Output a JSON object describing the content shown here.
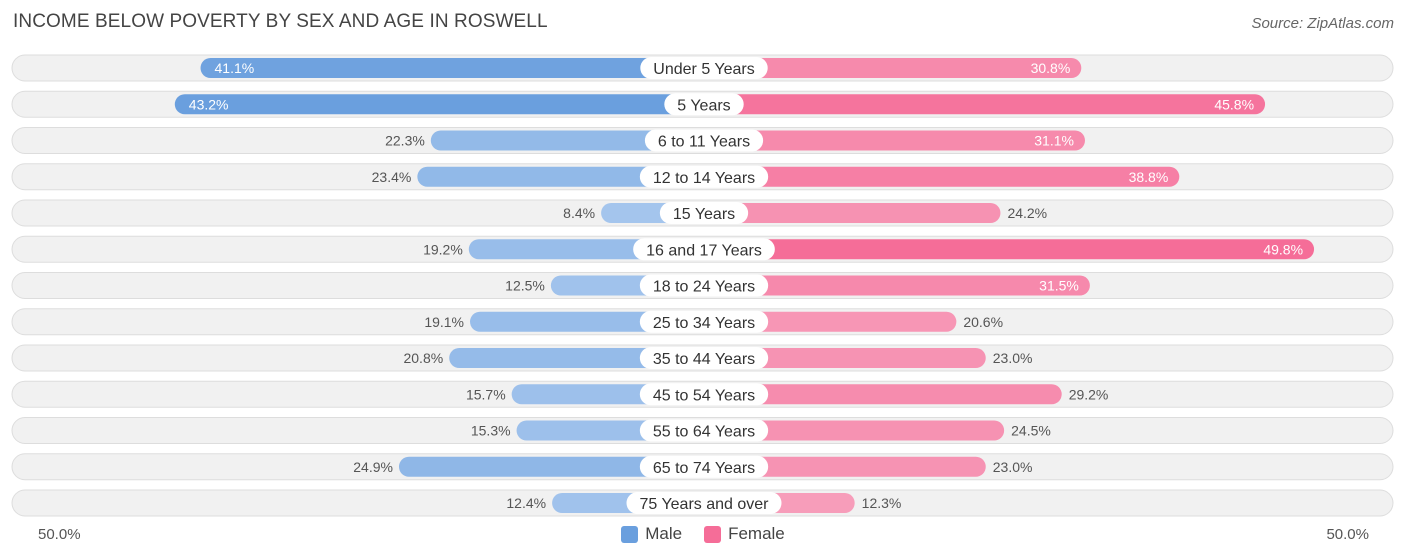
{
  "header": {
    "title": "INCOME BELOW POVERTY BY SEX AND AGE IN ROSWELL",
    "source": "Source: ZipAtlas.com"
  },
  "axis": {
    "left_label": "50.0%",
    "right_label": "50.0%"
  },
  "legend": {
    "male_label": "Male",
    "female_label": "Female"
  },
  "colors": {
    "male_strong": "#6a9fde",
    "male_light": "#a9c8ee",
    "female_strong": "#f56d98",
    "female_light": "#f7a3be",
    "row_bg": "#f1f1f1",
    "row_border": "#dddddd"
  },
  "chart_data": {
    "type": "bar",
    "orientation": "horizontal-diverging",
    "title": "INCOME BELOW POVERTY BY SEX AND AGE IN ROSWELL",
    "xlim": [
      -50,
      50
    ],
    "categories": [
      "Under 5 Years",
      "5 Years",
      "6 to 11 Years",
      "12 to 14 Years",
      "15 Years",
      "16 and 17 Years",
      "18 to 24 Years",
      "25 to 34 Years",
      "35 to 44 Years",
      "45 to 54 Years",
      "55 to 64 Years",
      "65 to 74 Years",
      "75 Years and over"
    ],
    "series": [
      {
        "name": "Male",
        "values": [
          41.1,
          43.2,
          22.3,
          23.4,
          8.4,
          19.2,
          12.5,
          19.1,
          20.8,
          15.7,
          15.3,
          24.9,
          12.4
        ],
        "labels": [
          "41.1%",
          "43.2%",
          "22.3%",
          "23.4%",
          "8.4%",
          "19.2%",
          "12.5%",
          "19.1%",
          "20.8%",
          "15.7%",
          "15.3%",
          "24.9%",
          "12.4%"
        ]
      },
      {
        "name": "Female",
        "values": [
          30.8,
          45.8,
          31.1,
          38.8,
          24.2,
          49.8,
          31.5,
          20.6,
          23.0,
          29.2,
          24.5,
          23.0,
          12.3
        ],
        "labels": [
          "30.8%",
          "45.8%",
          "31.1%",
          "38.8%",
          "24.2%",
          "49.8%",
          "31.5%",
          "20.6%",
          "23.0%",
          "29.2%",
          "24.5%",
          "23.0%",
          "12.3%"
        ]
      }
    ],
    "legend": "bottom-center",
    "grid": false
  }
}
